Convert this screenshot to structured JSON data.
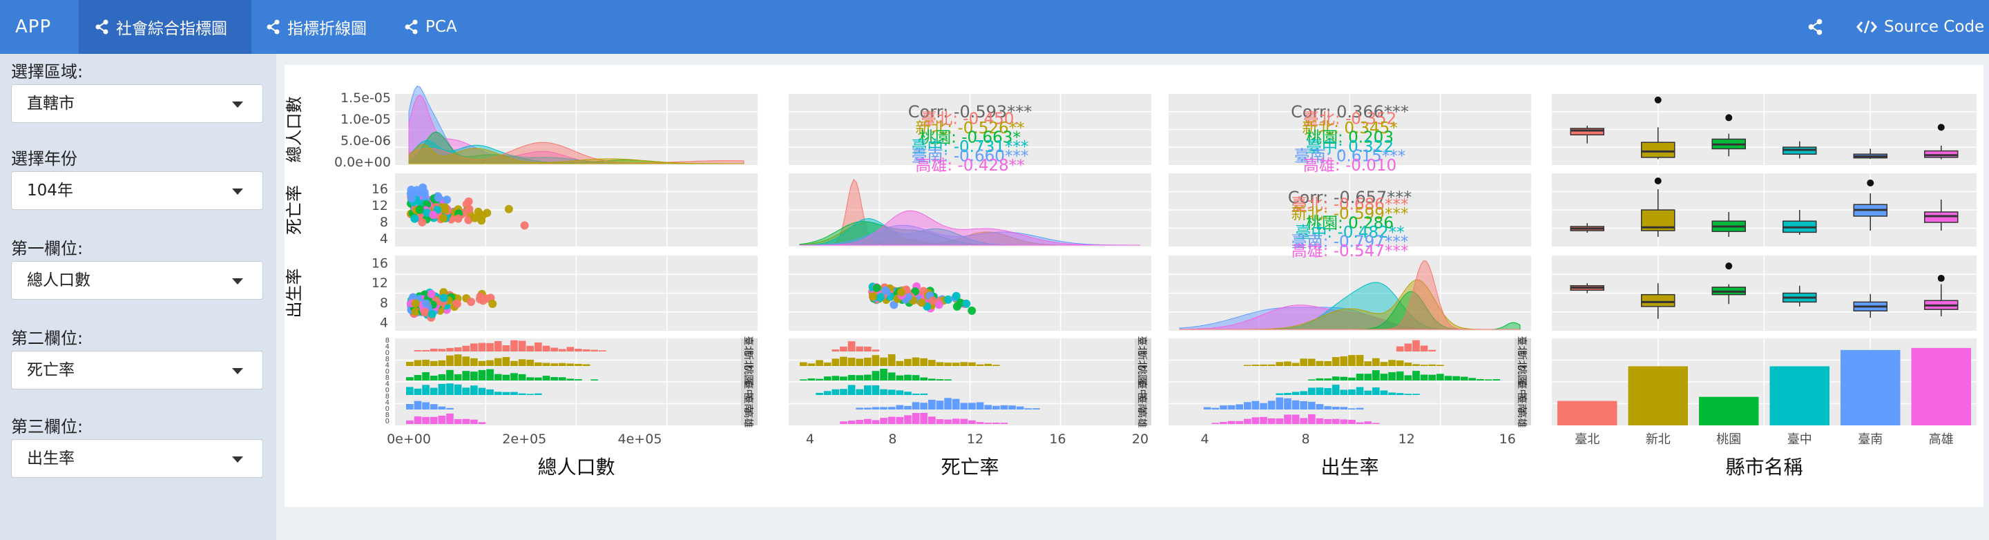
{
  "navbar": {
    "brand": "APP",
    "tabs": [
      {
        "label": "社會綜合指標圖",
        "active": true
      },
      {
        "label": "指標折線圖",
        "active": false
      },
      {
        "label": "PCA",
        "active": false
      }
    ],
    "source_code_label": "Source Code"
  },
  "sidebar": {
    "fields": [
      {
        "label": "選擇區域:",
        "value": "直轄市"
      },
      {
        "label": "選擇年份",
        "value": "104年"
      },
      {
        "label": "第一欄位:",
        "value": "總人口數"
      },
      {
        "label": "第二欄位:",
        "value": "死亡率"
      },
      {
        "label": "第三欄位:",
        "value": "出生率"
      }
    ]
  },
  "colors": {
    "navbar": "#3c7fd9",
    "navbar_active": "#2f6ac0",
    "panel_bg": "#ebebeb",
    "臺北": "#F8766D",
    "新北": "#B79F00",
    "桃園": "#00BA38",
    "臺中": "#00BFC4",
    "臺南": "#619CFF",
    "高雄": "#F564E3"
  },
  "chart_data": {
    "type": "pairs",
    "cities": [
      "臺北",
      "新北",
      "桃園",
      "臺中",
      "臺南",
      "高雄"
    ],
    "variables": [
      "總人口數",
      "死亡率",
      "出生率",
      "縣市名稱"
    ],
    "x_axis_labels": [
      "總人口數",
      "死亡率",
      "出生率",
      "縣市名稱"
    ],
    "y_axis_labels": [
      "總人口數",
      "死亡率",
      "出生率"
    ],
    "ticks": {
      "pop_x": [
        "0e+00",
        "2e+05",
        "4e+05"
      ],
      "pop_density_y": [
        "1.5e-05",
        "1.0e-05",
        "5.0e-06",
        "0.0e+00"
      ],
      "death_x": [
        "4",
        "8",
        "12",
        "16",
        "20"
      ],
      "death_y": [
        "16",
        "12",
        "8",
        "4"
      ],
      "birth_x": [
        "4",
        "8",
        "12",
        "16"
      ],
      "birth_y": [
        "16",
        "12",
        "8",
        "4"
      ]
    },
    "correlations": {
      "pop_death": {
        "overall": "Corr: -0.593***",
        "by_city": [
          "臺北: -0.450.",
          "新北: -0.526**",
          "桃園: -0.663*",
          "臺中: -0.731***",
          "臺南: -0.660***",
          "高雄: -0.428**"
        ]
      },
      "pop_birth": {
        "overall": "Corr: 0.366***",
        "by_city": [
          "臺北: -0.352",
          "新北: 0.345*",
          "桃園: 0.203",
          "臺中: 0.322",
          "臺南: 0.615***",
          "高雄: -0.010"
        ]
      },
      "death_birth": {
        "overall": "Corr: -0.657***",
        "by_city": [
          "臺北: -0.686***",
          "新北: -0.599***",
          "桃園: 0.286",
          "臺中: -0.482**",
          "臺南: -0.797***",
          "高雄: -0.547***"
        ]
      }
    },
    "bar_counts": {
      "categories": [
        "臺北",
        "新北",
        "桃園",
        "臺中",
        "臺南",
        "高雄"
      ],
      "values": [
        12,
        29,
        14,
        29,
        37,
        38
      ]
    },
    "boxplots": {
      "總人口數": {
        "臺北": [
          150000.0,
          230000.0,
          270000.0,
          290000.0,
          315000.0
        ],
        "新北": [
          3000.0,
          20000.0,
          75000.0,
          160000.0,
          300000.0
        ],
        "桃園": [
          30000.0,
          100000.0,
          140000.0,
          190000.0,
          240000.0
        ],
        "臺中": [
          10000.0,
          50000.0,
          90000.0,
          115000.0,
          170000.0
        ],
        "臺南": [
          5000.0,
          15000.0,
          30000.0,
          50000.0,
          100000.0
        ],
        "高雄": [
          3000.0,
          20000.0,
          40000.0,
          80000.0,
          130000.0
        ]
      },
      "死亡率": {
        "臺北": [
          5.5,
          6,
          6.5,
          7,
          7.8
        ],
        "新北": [
          4.5,
          6,
          6.8,
          11,
          16
        ],
        "桃園": [
          4.5,
          5.8,
          7,
          8.3,
          10.5
        ],
        "臺中": [
          5,
          5.6,
          6.8,
          8.3,
          11
        ],
        "臺南": [
          6,
          9.5,
          11,
          12.3,
          15
        ],
        "高雄": [
          6,
          8,
          9.5,
          10.5,
          13.5
        ]
      },
      "出生率": {
        "臺北": [
          10,
          10.6,
          11.1,
          11.5,
          12
        ],
        "新北": [
          4.8,
          7.3,
          8.2,
          9.7,
          12
        ],
        "桃園": [
          7.8,
          9.7,
          10.3,
          11.2,
          11.8
        ],
        "臺中": [
          7.3,
          8.2,
          9.1,
          10,
          11.5
        ],
        "臺南": [
          5,
          6.4,
          7.3,
          8.2,
          9.8
        ],
        "高雄": [
          5.3,
          6.7,
          7.5,
          8.5,
          11.8
        ]
      }
    }
  }
}
